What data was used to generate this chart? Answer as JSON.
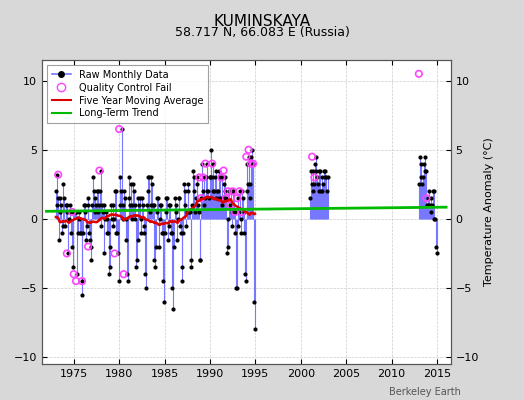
{
  "title": "KUMINSKAYA",
  "subtitle": "58.717 N, 66.083 E (Russia)",
  "ylabel": "Temperature Anomaly (°C)",
  "watermark": "Berkeley Earth",
  "xlim": [
    1971.5,
    2016.5
  ],
  "ylim": [
    -10.5,
    11.5
  ],
  "yticks": [
    -10,
    -5,
    0,
    5,
    10
  ],
  "xticks": [
    1975,
    1980,
    1985,
    1990,
    1995,
    2000,
    2005,
    2010,
    2015
  ],
  "bg_color": "#d8d8d8",
  "plot_bg_color": "#ffffff",
  "raw_line_color": "#7777ff",
  "raw_fill_color": "#aaaaff",
  "raw_marker_color": "#000000",
  "qc_fail_color": "#ff44ff",
  "moving_avg_color": "#dd0000",
  "trend_color": "#00bb00",
  "raw_data_years": [
    1973,
    1973,
    1973,
    1973,
    1973,
    1973,
    1973,
    1973,
    1973,
    1973,
    1973,
    1973,
    1974,
    1974,
    1974,
    1974,
    1974,
    1974,
    1974,
    1974,
    1974,
    1974,
    1974,
    1974,
    1975,
    1975,
    1975,
    1975,
    1975,
    1975,
    1975,
    1975,
    1975,
    1975,
    1975,
    1975,
    1976,
    1976,
    1976,
    1976,
    1976,
    1976,
    1976,
    1976,
    1976,
    1976,
    1976,
    1976,
    1977,
    1977,
    1977,
    1977,
    1977,
    1977,
    1977,
    1977,
    1977,
    1977,
    1977,
    1977,
    1978,
    1978,
    1978,
    1978,
    1978,
    1978,
    1978,
    1978,
    1978,
    1978,
    1978,
    1978,
    1979,
    1979,
    1979,
    1979,
    1979,
    1979,
    1979,
    1979,
    1979,
    1979,
    1979,
    1979,
    1980,
    1980,
    1980,
    1980,
    1980,
    1980,
    1980,
    1980,
    1980,
    1980,
    1980,
    1980,
    1981,
    1981,
    1981,
    1981,
    1981,
    1981,
    1981,
    1981,
    1981,
    1981,
    1981,
    1981,
    1982,
    1982,
    1982,
    1982,
    1982,
    1982,
    1982,
    1982,
    1982,
    1982,
    1982,
    1982,
    1983,
    1983,
    1983,
    1983,
    1983,
    1983,
    1983,
    1983,
    1983,
    1983,
    1983,
    1983,
    1984,
    1984,
    1984,
    1984,
    1984,
    1984,
    1984,
    1984,
    1984,
    1984,
    1984,
    1984,
    1985,
    1985,
    1985,
    1985,
    1985,
    1985,
    1985,
    1985,
    1985,
    1985,
    1985,
    1985,
    1986,
    1986,
    1986,
    1986,
    1986,
    1986,
    1986,
    1986,
    1986,
    1986,
    1986,
    1986,
    1987,
    1987,
    1987,
    1987,
    1987,
    1987,
    1987,
    1987,
    1987,
    1987,
    1987,
    1987,
    1988,
    1988,
    1988,
    1988,
    1988,
    1988,
    1988,
    1988,
    1988,
    1988,
    1988,
    1988,
    1989,
    1989,
    1989,
    1989,
    1989,
    1989,
    1989,
    1989,
    1989,
    1989,
    1989,
    1989,
    1990,
    1990,
    1990,
    1990,
    1990,
    1990,
    1990,
    1990,
    1990,
    1990,
    1990,
    1990,
    1991,
    1991,
    1991,
    1991,
    1991,
    1991,
    1991,
    1991,
    1991,
    1991,
    1991,
    1991,
    1992,
    1992,
    1992,
    1992,
    1992,
    1992,
    1992,
    1992,
    1992,
    1992,
    1992,
    1992,
    1993,
    1993,
    1993,
    1993,
    1993,
    1993,
    1993,
    1993,
    1993,
    1993,
    1993,
    1993,
    1994,
    1994,
    1994,
    1994,
    1994,
    1994,
    1994,
    1994,
    1994,
    1994,
    1994,
    1994,
    2001,
    2001,
    2001,
    2001,
    2001,
    2001,
    2001,
    2001,
    2001,
    2001,
    2001,
    2001,
    2002,
    2002,
    2002,
    2002,
    2002,
    2002,
    2002,
    2002,
    2002,
    2002,
    2002,
    2002,
    2013,
    2013,
    2013,
    2013,
    2013,
    2013,
    2013,
    2013,
    2013,
    2013,
    2013,
    2013,
    2014,
    2014,
    2014,
    2014,
    2014,
    2014,
    2014,
    2014,
    2014,
    2014,
    2014,
    2014
  ],
  "raw_data_anomalies": [
    2.0,
    3.2,
    1.0,
    1.5,
    -1.5,
    0.5,
    1.5,
    1.0,
    -1.0,
    -0.5,
    2.5,
    1.5,
    -0.5,
    1.0,
    0.5,
    1.0,
    -2.5,
    0.0,
    1.0,
    0.5,
    -1.0,
    -2.0,
    -3.5,
    0.5,
    0.5,
    0.5,
    0.5,
    0.5,
    -4.0,
    -1.0,
    0.5,
    0.0,
    -1.0,
    -1.0,
    -4.5,
    -5.5,
    -1.0,
    1.0,
    0.5,
    1.0,
    -1.5,
    -0.5,
    1.5,
    1.0,
    -1.0,
    -1.5,
    -2.0,
    -3.0,
    1.0,
    3.0,
    2.0,
    1.5,
    0.5,
    1.0,
    2.0,
    2.0,
    0.5,
    1.0,
    2.0,
    3.5,
    -0.5,
    1.0,
    0.5,
    1.0,
    -2.5,
    0.0,
    0.5,
    0.0,
    -1.0,
    -1.0,
    -4.0,
    -3.5,
    -2.0,
    1.0,
    0.0,
    1.0,
    -0.5,
    0.0,
    2.0,
    2.0,
    -1.0,
    -1.0,
    -2.5,
    -4.5,
    1.0,
    3.0,
    2.0,
    6.5,
    0.0,
    1.0,
    2.0,
    1.5,
    0.0,
    -1.5,
    -4.0,
    -4.5,
    1.5,
    3.0,
    1.0,
    2.5,
    0.0,
    1.0,
    2.5,
    2.0,
    1.0,
    0.0,
    -3.5,
    -3.0,
    -1.5,
    1.5,
    1.0,
    1.5,
    -1.0,
    0.0,
    1.5,
    1.0,
    -0.5,
    -1.0,
    -4.0,
    -5.0,
    1.0,
    3.0,
    2.0,
    3.0,
    0.5,
    1.0,
    3.0,
    2.5,
    1.0,
    1.0,
    -3.0,
    -3.5,
    -2.0,
    1.5,
    0.5,
    1.5,
    -2.0,
    0.0,
    1.0,
    1.0,
    -1.0,
    -1.0,
    -4.5,
    -6.0,
    -1.0,
    1.5,
    0.5,
    1.5,
    -1.5,
    -0.5,
    1.0,
    1.0,
    -1.0,
    -1.0,
    -5.0,
    -6.5,
    -2.0,
    1.5,
    0.5,
    1.0,
    -1.5,
    0.0,
    1.5,
    1.5,
    -0.5,
    -1.0,
    -3.5,
    -4.5,
    -1.0,
    2.5,
    1.0,
    2.0,
    -0.5,
    0.5,
    2.0,
    2.5,
    0.5,
    0.5,
    -3.0,
    -3.5,
    1.0,
    3.5,
    2.0,
    3.0,
    0.5,
    1.5,
    2.5,
    3.0,
    1.0,
    0.5,
    -3.0,
    -3.0,
    1.5,
    4.0,
    2.0,
    3.0,
    1.0,
    1.5,
    3.0,
    4.0,
    2.0,
    2.0,
    1.5,
    3.0,
    3.0,
    5.0,
    3.0,
    4.0,
    2.0,
    2.0,
    3.0,
    3.5,
    1.5,
    2.0,
    2.0,
    3.5,
    1.5,
    3.0,
    1.5,
    3.0,
    1.0,
    1.5,
    2.5,
    3.0,
    2.0,
    1.5,
    -2.5,
    -2.0,
    0.0,
    2.0,
    1.0,
    2.0,
    -0.5,
    0.5,
    2.0,
    2.0,
    0.5,
    -1.0,
    -5.0,
    -5.0,
    -0.5,
    1.5,
    0.5,
    2.0,
    -1.0,
    0.0,
    2.0,
    1.5,
    0.5,
    -1.0,
    -4.0,
    -4.5,
    2.0,
    4.0,
    2.5,
    4.5,
    1.5,
    2.5,
    4.5,
    5.0,
    4.0,
    4.0,
    -6.0,
    -8.0,
    1.5,
    3.5,
    2.5,
    3.5,
    2.0,
    2.5,
    4.0,
    4.5,
    3.5,
    3.0,
    2.5,
    3.5,
    2.0,
    3.5,
    2.0,
    3.0,
    2.0,
    2.5,
    3.5,
    3.5,
    3.0,
    3.0,
    2.0,
    3.0,
    2.5,
    4.5,
    3.0,
    4.0,
    2.5,
    3.0,
    4.0,
    4.5,
    3.5,
    3.5,
    1.0,
    1.5,
    1.0,
    2.0,
    1.0,
    1.5,
    0.5,
    1.0,
    2.0,
    2.0,
    0.0,
    0.0,
    -2.0,
    -2.5
  ],
  "qc_fail_x": [
    1973.29,
    1974.25,
    1974.83,
    1975.0,
    1975.25,
    1975.92,
    1976.58,
    1977.83,
    1979.5,
    1980.0,
    1980.5,
    1988.83,
    1989.0,
    1989.25,
    1989.5,
    1990.25,
    1991.25,
    1991.5,
    1991.75,
    1992.0,
    1992.25,
    1992.5,
    1992.75,
    1993.0,
    1993.25,
    1993.5,
    1994.0,
    1994.25,
    1994.5,
    1994.75,
    2001.25,
    2001.5,
    2013.0,
    2013.83
  ],
  "qc_fail_y": [
    3.2,
    -2.5,
    0.5,
    -4.0,
    -4.5,
    -4.5,
    -2.0,
    3.5,
    -2.5,
    6.5,
    -4.0,
    3.0,
    1.5,
    3.0,
    4.0,
    4.0,
    3.0,
    3.5,
    1.5,
    2.0,
    1.0,
    2.0,
    0.5,
    1.5,
    2.0,
    0.5,
    4.5,
    5.0,
    4.0,
    4.0,
    4.5,
    3.0,
    10.5,
    1.5
  ],
  "trend_x": [
    1972,
    2016
  ],
  "trend_y": [
    0.55,
    0.85
  ]
}
